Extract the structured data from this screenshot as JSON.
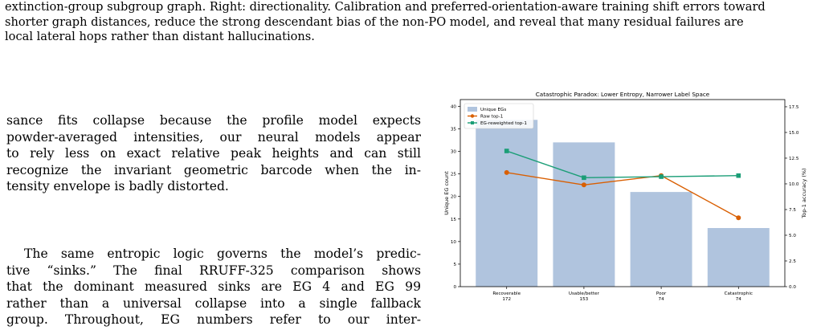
{
  "caption": {
    "lines": [
      "extinction-group subgroup graph. Right: directionality. Calibration and preferred-orientation-aware training shift errors toward",
      "shorter graph distances, reduce the strong descendant bias of the non-PO model, and reveal that many residual failures are",
      "local lateral hops rather than distant hallucinations."
    ]
  },
  "para1": {
    "lines": [
      "sance fits collapse because the profile model expects",
      "powder-averaged intensities, our neural models appear",
      "to rely less on exact relative peak heights and can still",
      "recognize the invariant geometric barcode when the in-",
      "tensity envelope is badly distorted."
    ]
  },
  "para2": {
    "lines": [
      "The same entropic logic governs the model’s predic-",
      "tive “sinks.” The final RRUFF-325 comparison shows",
      "that the dominant measured sinks are EG 4 and EG 99",
      "rather than a universal collapse into a single fallback",
      "group. Throughout, EG numbers refer to our inter-"
    ]
  },
  "chart_data": {
    "type": "bar",
    "title": "Catastrophic Paradox: Lower Entropy, Narrower Label Space",
    "categories": [
      "Recoverable",
      "Usable/better",
      "Poor",
      "Catastrophic"
    ],
    "category_counts": [
      "172",
      "153",
      "74",
      "74"
    ],
    "ylabel": "Unique EG count",
    "y2label": "Top-1 accuracy (%)",
    "ylim": [
      0,
      41.5
    ],
    "y2lim": [
      0,
      18.2
    ],
    "yticks": [
      0,
      5,
      10,
      15,
      20,
      25,
      30,
      35,
      40
    ],
    "y2ticks": [
      0.0,
      2.5,
      5.0,
      7.5,
      10.0,
      12.5,
      15.0,
      17.5
    ],
    "legend_position": "top-left",
    "grid": false,
    "series": [
      {
        "name": "Unique EGs",
        "kind": "bar",
        "axis": "left",
        "color": "#b0c4de",
        "values": [
          37,
          32,
          21,
          13
        ]
      },
      {
        "name": "Raw top-1",
        "kind": "line",
        "axis": "right",
        "marker": "circle",
        "color": "#d95f02",
        "values": [
          11.1,
          9.9,
          10.8,
          6.7
        ]
      },
      {
        "name": "EG-reweighted top-1",
        "kind": "line",
        "axis": "right",
        "marker": "square",
        "color": "#1b9e77",
        "values": [
          13.2,
          10.6,
          10.7,
          10.8
        ]
      }
    ]
  }
}
